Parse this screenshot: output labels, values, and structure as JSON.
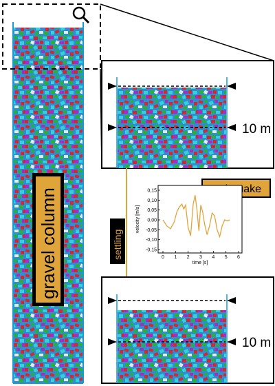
{
  "column": {
    "label": "gravel column"
  },
  "arrow": {
    "label": "settling"
  },
  "panels": {
    "top": {
      "depth_label": "10 m"
    },
    "bottom": {
      "depth_label": "10 m"
    }
  },
  "earthquake_label": "earthquake",
  "chart_data": {
    "type": "line",
    "title": "",
    "xlabel": "time [s]",
    "ylabel": "velocity [m/s]",
    "xlim": [
      0,
      6
    ],
    "ylim": [
      -0.15,
      0.15
    ],
    "xticks": [
      "0",
      "1",
      "2",
      "3",
      "4",
      "5",
      "6"
    ],
    "yticks": [
      "0,15",
      "0,10",
      "0,05",
      "0,00",
      "-0,05",
      "-0,10",
      "-0,15"
    ],
    "grid": false,
    "series": [
      {
        "color": "#e0a53a",
        "x": [
          0.0,
          0.3,
          0.6,
          0.9,
          1.1,
          1.3,
          1.5,
          1.65,
          1.8,
          2.0,
          2.2,
          2.4,
          2.55,
          2.7,
          2.85,
          3.0,
          3.15,
          3.3,
          3.5,
          3.7,
          3.9,
          4.1,
          4.3,
          4.5,
          4.7,
          4.9,
          5.1,
          5.3
        ],
        "y": [
          0.0,
          -0.03,
          -0.045,
          -0.01,
          0.04,
          0.065,
          0.08,
          0.055,
          0.075,
          -0.04,
          -0.08,
          0.08,
          0.125,
          0.05,
          -0.055,
          0.075,
          0.04,
          -0.02,
          -0.075,
          -0.03,
          0.035,
          0.02,
          -0.05,
          -0.085,
          -0.03,
          0.0,
          -0.005,
          0.0
        ]
      }
    ]
  },
  "colors": {
    "arrow": "#e0a53a",
    "label_bg": "#e0a53a",
    "label_bg_dark": "#000000",
    "container": "#1a9bd7"
  }
}
